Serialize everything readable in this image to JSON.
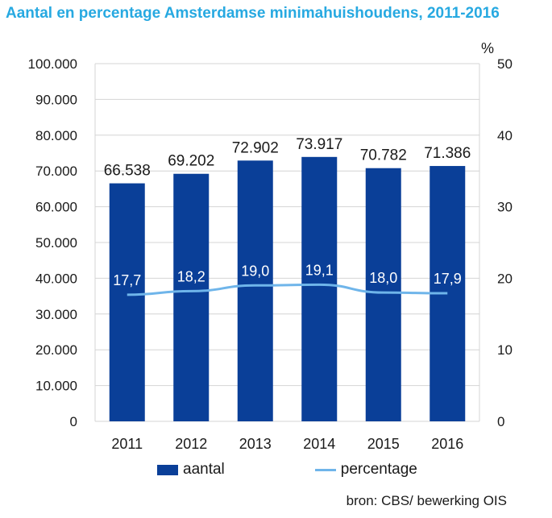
{
  "colors": {
    "title": "#27A9E1",
    "bar": "#0A3F98",
    "line": "#6FB5EA",
    "grid": "#d4d4d4",
    "axis_text": "#1a1a1a",
    "bar_label": "#1a1a1a",
    "line_label": "#ffffff"
  },
  "chart_data": {
    "type": "bar",
    "title": "Aantal en percentage Amsterdamse minimahuishoudens, 2011-2016",
    "categories": [
      "2011",
      "2012",
      "2013",
      "2014",
      "2015",
      "2016"
    ],
    "series": [
      {
        "name": "aantal",
        "type": "bar",
        "axis": "left",
        "values": [
          66538,
          69202,
          72902,
          73917,
          70782,
          71386
        ],
        "labels": [
          "66.538",
          "69.202",
          "72.902",
          "73.917",
          "70.782",
          "71.386"
        ]
      },
      {
        "name": "percentage",
        "type": "line",
        "axis": "right",
        "values": [
          17.7,
          18.2,
          19.0,
          19.1,
          18.0,
          17.9
        ],
        "labels": [
          "17,7",
          "18,2",
          "19,0",
          "19,1",
          "18,0",
          "17,9"
        ]
      }
    ],
    "y_left": {
      "range": [
        0,
        100000
      ],
      "ticks": [
        0,
        10000,
        20000,
        30000,
        40000,
        50000,
        60000,
        70000,
        80000,
        90000,
        100000
      ],
      "tick_labels": [
        "0",
        "10.000",
        "20.000",
        "30.000",
        "40.000",
        "50.000",
        "60.000",
        "70.000",
        "80.000",
        "90.000",
        "100.000"
      ]
    },
    "y_right": {
      "range": [
        0,
        50
      ],
      "label": "%",
      "ticks": [
        0,
        10,
        20,
        30,
        40,
        50
      ],
      "tick_labels": [
        "0",
        "10",
        "20",
        "30",
        "40",
        "50"
      ]
    },
    "grid": true,
    "legend": "bottom"
  },
  "source": "bron: CBS/ bewerking OIS"
}
